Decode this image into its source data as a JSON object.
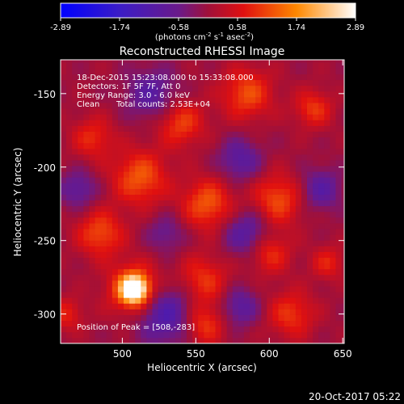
{
  "chart_data": {
    "type": "heatmap",
    "title": "Reconstructed RHESSI Image",
    "xlabel": "Heliocentric X (arcsec)",
    "ylabel": "Heliocentric Y (arcsec)",
    "xlim": [
      458,
      651
    ],
    "ylim": [
      -320,
      -127
    ],
    "x_ticks": [
      500,
      550,
      600,
      650
    ],
    "y_ticks": [
      -150,
      -200,
      -250,
      -300
    ],
    "annotations": {
      "time_range": "18-Dec-2015 15:23:08.000 to 15:33:08.000",
      "detectors": "Detectors: 1F 5F 7F, Att 0",
      "energy": "Energy Range: 3.0 - 6.0 keV",
      "algorithm": "Clean",
      "total_counts": "Total counts: 2.53E+04",
      "peak": "Position of Peak = [508,-283]"
    },
    "peak": [
      508,
      -283
    ],
    "colorbar": {
      "ticks": [
        "-2.89",
        "-1.74",
        "-0.58",
        "0.58",
        "1.74",
        "2.89"
      ],
      "min": -2.89,
      "max": 2.89,
      "units_main": "(photons cm",
      "units_exp1": "-2",
      "units_s": " s",
      "units_exp2": "-1",
      "units_asec": " asec",
      "units_exp3": "-2",
      "units_end": ")"
    },
    "blobs": [
      {
        "x": 508,
        "y": -283,
        "v": 2.89,
        "s": 6
      },
      {
        "x": 508,
        "y": -283,
        "v": 1.6,
        "s": 12
      },
      {
        "x": 512,
        "y": -207,
        "v": 1.3,
        "s": 13
      },
      {
        "x": 485,
        "y": -245,
        "v": 1.2,
        "s": 11
      },
      {
        "x": 558,
        "y": -225,
        "v": 1.3,
        "s": 12
      },
      {
        "x": 540,
        "y": -170,
        "v": 1.1,
        "s": 11
      },
      {
        "x": 585,
        "y": -150,
        "v": 1.2,
        "s": 12
      },
      {
        "x": 630,
        "y": -160,
        "v": 1.0,
        "s": 9
      },
      {
        "x": 606,
        "y": -222,
        "v": 1.2,
        "s": 12
      },
      {
        "x": 555,
        "y": -277,
        "v": 1.0,
        "s": 12
      },
      {
        "x": 555,
        "y": -307,
        "v": 1.1,
        "s": 10
      },
      {
        "x": 600,
        "y": -258,
        "v": 1.0,
        "s": 10
      },
      {
        "x": 615,
        "y": -300,
        "v": 1.0,
        "s": 11
      },
      {
        "x": 480,
        "y": -180,
        "v": 0.9,
        "s": 10
      },
      {
        "x": 462,
        "y": -300,
        "v": 0.8,
        "s": 8
      },
      {
        "x": 640,
        "y": -265,
        "v": 0.8,
        "s": 8
      },
      {
        "x": 530,
        "y": -300,
        "v": -1.3,
        "s": 14
      },
      {
        "x": 585,
        "y": -245,
        "v": -1.1,
        "s": 11
      },
      {
        "x": 520,
        "y": -150,
        "v": -1.0,
        "s": 12
      },
      {
        "x": 580,
        "y": -195,
        "v": -1.0,
        "s": 10
      },
      {
        "x": 635,
        "y": -215,
        "v": -1.0,
        "s": 10
      },
      {
        "x": 470,
        "y": -215,
        "v": -0.9,
        "s": 9
      },
      {
        "x": 580,
        "y": -295,
        "v": -1.0,
        "s": 9
      },
      {
        "x": 530,
        "y": -245,
        "v": -0.7,
        "s": 9
      }
    ]
  },
  "footer_date": "20-Oct-2017 05:22"
}
